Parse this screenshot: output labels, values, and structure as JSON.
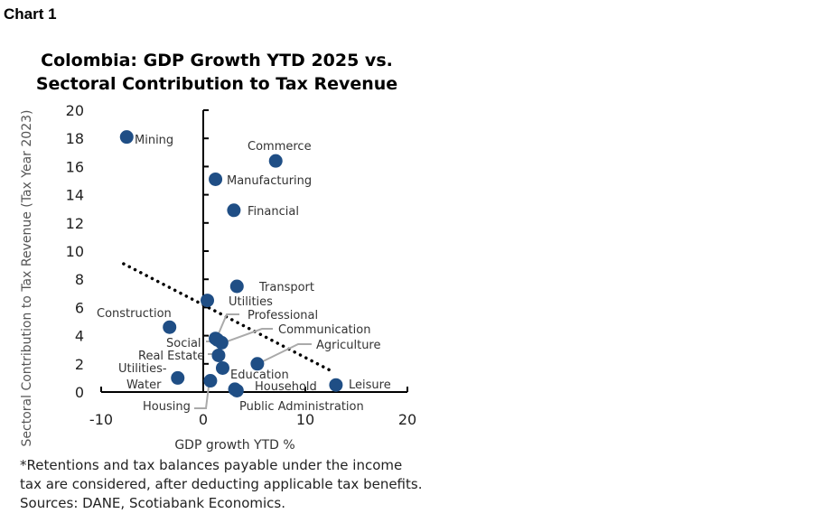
{
  "header": "Chart 1",
  "chart_data": {
    "type": "scatter",
    "title": "Colombia: GDP Growth YTD 2025 vs. Sectoral Contribution to Tax Revenue",
    "title_lines": [
      "Colombia: GDP Growth YTD 2025 vs.",
      "Sectoral Contribution to Tax Revenue"
    ],
    "xlabel": "GDP growth YTD %",
    "ylabel": "Sectoral Contribution to Tax Revenue  (Tax Year 2023)",
    "xlim": [
      -10,
      20
    ],
    "ylim": [
      0,
      20
    ],
    "xticks": [
      -10,
      0,
      10,
      20
    ],
    "yticks": [
      0,
      2,
      4,
      6,
      8,
      10,
      12,
      14,
      16,
      18,
      20
    ],
    "grid": false,
    "marker_color": "#1f4e85",
    "points": [
      {
        "label": "Mining",
        "x": -7.5,
        "y": 18.1
      },
      {
        "label": "Commerce",
        "x": 7.1,
        "y": 16.4
      },
      {
        "label": "Manufacturing",
        "x": 1.2,
        "y": 15.1
      },
      {
        "label": "Financial",
        "x": 3.0,
        "y": 12.9
      },
      {
        "label": "Transport",
        "x": 3.3,
        "y": 7.5
      },
      {
        "label": "Utilities",
        "x": 0.4,
        "y": 6.5
      },
      {
        "label": "Construction",
        "x": -3.3,
        "y": 4.6
      },
      {
        "label": "Professional",
        "x": 1.2,
        "y": 3.8
      },
      {
        "label": "Social",
        "x": 1.4,
        "y": 3.7
      },
      {
        "label": "Communication",
        "x": 1.8,
        "y": 3.5
      },
      {
        "label": "Real Estate",
        "x": 1.5,
        "y": 2.6
      },
      {
        "label": "Agriculture",
        "x": 5.3,
        "y": 2.0
      },
      {
        "label": "Education",
        "x": 1.9,
        "y": 1.7
      },
      {
        "label": "Utilities-Water",
        "x": -2.5,
        "y": 1.0
      },
      {
        "label": "Housing",
        "x": 0.7,
        "y": 0.8
      },
      {
        "label": "Household",
        "x": 3.1,
        "y": 0.2
      },
      {
        "label": "Public Administration",
        "x": 3.3,
        "y": 0.1
      },
      {
        "label": "Leisure",
        "x": 13.0,
        "y": 0.5
      }
    ],
    "trendline": {
      "style": "dotted",
      "from": {
        "x": -7.8,
        "y": 9.1
      },
      "to": {
        "x": 12.8,
        "y": 1.4
      }
    }
  },
  "footnote": [
    "*Retentions and tax balances payable under the income",
    "tax are considered, after deducting applicable tax benefits.",
    "Sources: DANE, Scotiabank Economics."
  ]
}
